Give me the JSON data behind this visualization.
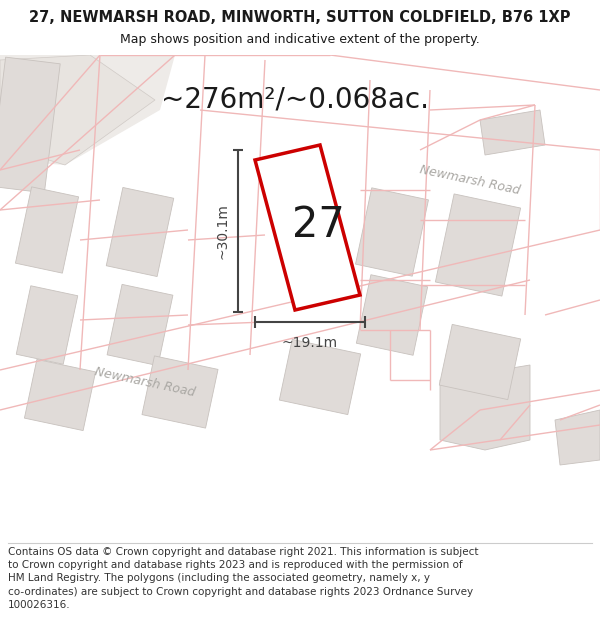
{
  "title_line1": "27, NEWMARSH ROAD, MINWORTH, SUTTON COLDFIELD, B76 1XP",
  "title_line2": "Map shows position and indicative extent of the property.",
  "area_text": "~276m²/~0.068ac.",
  "dim_width": "~19.1m",
  "dim_height": "~30.1m",
  "plot_number": "27",
  "footer": "Contains OS data © Crown copyright and database right 2021. This information is subject to Crown copyright and database rights 2023 and is reproduced with the permission of HM Land Registry. The polygons (including the associated geometry, namely x, y co-ordinates) are subject to Crown copyright and database rights 2023 Ordnance Survey 100026316.",
  "map_bg": "#f7f4f2",
  "road_line_color": "#f0b8b8",
  "building_fill": "#e0dbd8",
  "building_edge": "#c8c2be",
  "plot_outline_color": "#cc0000",
  "plot_fill": "#ffffff",
  "dim_color": "#444444",
  "text_color": "#1a1a1a",
  "road_label_color": "#aaa8a4",
  "title_fontsize": 10.5,
  "subtitle_fontsize": 9,
  "area_fontsize": 20,
  "footer_fontsize": 7.5,
  "plot_number_fontsize": 30,
  "dim_fontsize": 10,
  "road_lw": 1.0
}
